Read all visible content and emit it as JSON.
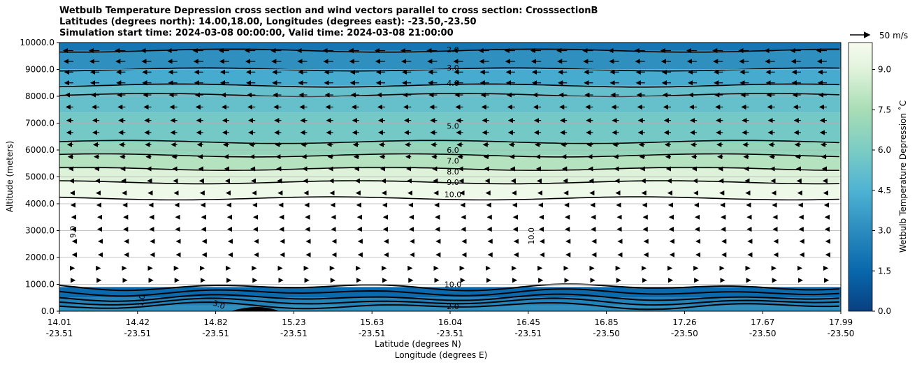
{
  "title_lines": [
    "Wetbulb Temperature Depression cross section and wind vectors parallel to cross section: CrosssectionB",
    "Latitudes (degrees north): 14.00,18.00, Longitudes (degrees east): -23.50,-23.50",
    "Simulation start time: 2024-03-08 00:00:00, Valid time: 2024-03-08 21:00:00"
  ],
  "chart_data": {
    "type": "contour",
    "title": "Wetbulb Temperature Depression cross section and wind vectors parallel to cross section: CrosssectionB",
    "ylabel": "Altitude (meters)",
    "xlabel_lat": "Latitude (degrees N)",
    "xlabel_lon": "Longitude (degrees E)",
    "ylim": [
      0,
      10000
    ],
    "xlim": [
      14.01,
      17.99
    ],
    "y_ticks": [
      "0.0",
      "1000.0",
      "2000.0",
      "3000.0",
      "4000.0",
      "5000.0",
      "6000.0",
      "7000.0",
      "8000.0",
      "9000.0",
      "10000.0"
    ],
    "x_ticks": [
      {
        "lat": "14.01",
        "lon": "-23.51"
      },
      {
        "lat": "14.42",
        "lon": "-23.51"
      },
      {
        "lat": "14.82",
        "lon": "-23.51"
      },
      {
        "lat": "15.23",
        "lon": "-23.51"
      },
      {
        "lat": "15.63",
        "lon": "-23.51"
      },
      {
        "lat": "16.04",
        "lon": "-23.51"
      },
      {
        "lat": "16.45",
        "lon": "-23.51"
      },
      {
        "lat": "16.85",
        "lon": "-23.50"
      },
      {
        "lat": "17.26",
        "lon": "-23.50"
      },
      {
        "lat": "17.67",
        "lon": "-23.50"
      },
      {
        "lat": "17.99",
        "lon": "-23.50"
      }
    ],
    "colorbar": {
      "label": "Wetbulb Temperature Depression ˚C",
      "range": [
        0,
        10
      ],
      "ticks": [
        "0.0",
        "1.5",
        "3.0",
        "4.5",
        "6.0",
        "7.5",
        "9.0"
      ]
    },
    "wind_reference_label": "50 m/s",
    "contour_labels": [
      {
        "text": "2.0",
        "alt": 9740
      },
      {
        "text": "3.0",
        "alt": 9060
      },
      {
        "text": "4.0",
        "alt": 8500
      },
      {
        "text": "5.0",
        "alt": 6900
      },
      {
        "text": "6.0",
        "alt": 6000
      },
      {
        "text": "7.0",
        "alt": 5600
      },
      {
        "text": "8.0",
        "alt": 5200
      },
      {
        "text": "9.0",
        "alt": 4800
      },
      {
        "text": "10.0",
        "alt": 4350
      },
      {
        "text": "10.0",
        "alt": 1000
      },
      {
        "text": "2.0",
        "alt": 180
      }
    ],
    "side_labels": [
      "9.0",
      "10.0",
      "1.0",
      "3.0"
    ],
    "layers": [
      {
        "alt_bottom": 9700,
        "alt_top": 10000,
        "value": 2.0
      },
      {
        "alt_bottom": 9000,
        "alt_top": 9700,
        "value": 3.0
      },
      {
        "alt_bottom": 8400,
        "alt_top": 9000,
        "value": 4.0
      },
      {
        "alt_bottom": 7400,
        "alt_top": 8400,
        "value": 5.0
      },
      {
        "alt_bottom": 6300,
        "alt_top": 7400,
        "value": 5.5
      },
      {
        "alt_bottom": 5800,
        "alt_top": 6300,
        "value": 6.5
      },
      {
        "alt_bottom": 5300,
        "alt_top": 5800,
        "value": 7.5
      },
      {
        "alt_bottom": 4800,
        "alt_top": 5300,
        "value": 8.5
      },
      {
        "alt_bottom": 4200,
        "alt_top": 4800,
        "value": 9.5
      },
      {
        "alt_bottom": 900,
        "alt_top": 4200,
        "value": 10.0
      },
      {
        "alt_bottom": 500,
        "alt_top": 900,
        "value": 1.5
      },
      {
        "alt_bottom": 200,
        "alt_top": 500,
        "value": 2.5
      },
      {
        "alt_bottom": 0,
        "alt_top": 200,
        "value": 3.0
      }
    ],
    "wind_rows": [
      {
        "alt": 9700,
        "u": -14
      },
      {
        "alt": 9300,
        "u": -13
      },
      {
        "alt": 8900,
        "u": -12
      },
      {
        "alt": 8500,
        "u": -12
      },
      {
        "alt": 8050,
        "u": -11
      },
      {
        "alt": 7600,
        "u": -10
      },
      {
        "alt": 7100,
        "u": -9
      },
      {
        "alt": 6650,
        "u": -9
      },
      {
        "alt": 6200,
        "u": -8
      },
      {
        "alt": 5750,
        "u": -7
      },
      {
        "alt": 5300,
        "u": -6
      },
      {
        "alt": 4850,
        "u": -5
      },
      {
        "alt": 4400,
        "u": -4
      },
      {
        "alt": 3950,
        "u": -3
      },
      {
        "alt": 3500,
        "u": -2
      },
      {
        "alt": 3050,
        "u": -2
      },
      {
        "alt": 2600,
        "u": -1
      },
      {
        "alt": 2100,
        "u": -1
      },
      {
        "alt": 1600,
        "u": 1
      },
      {
        "alt": 1150,
        "u": 2
      }
    ]
  },
  "colors": {
    "low": "#084081",
    "mid": "#4eb3d3",
    "high": "#f7fcf0",
    "contour": "#000000",
    "grid": "#b0b0b0"
  }
}
